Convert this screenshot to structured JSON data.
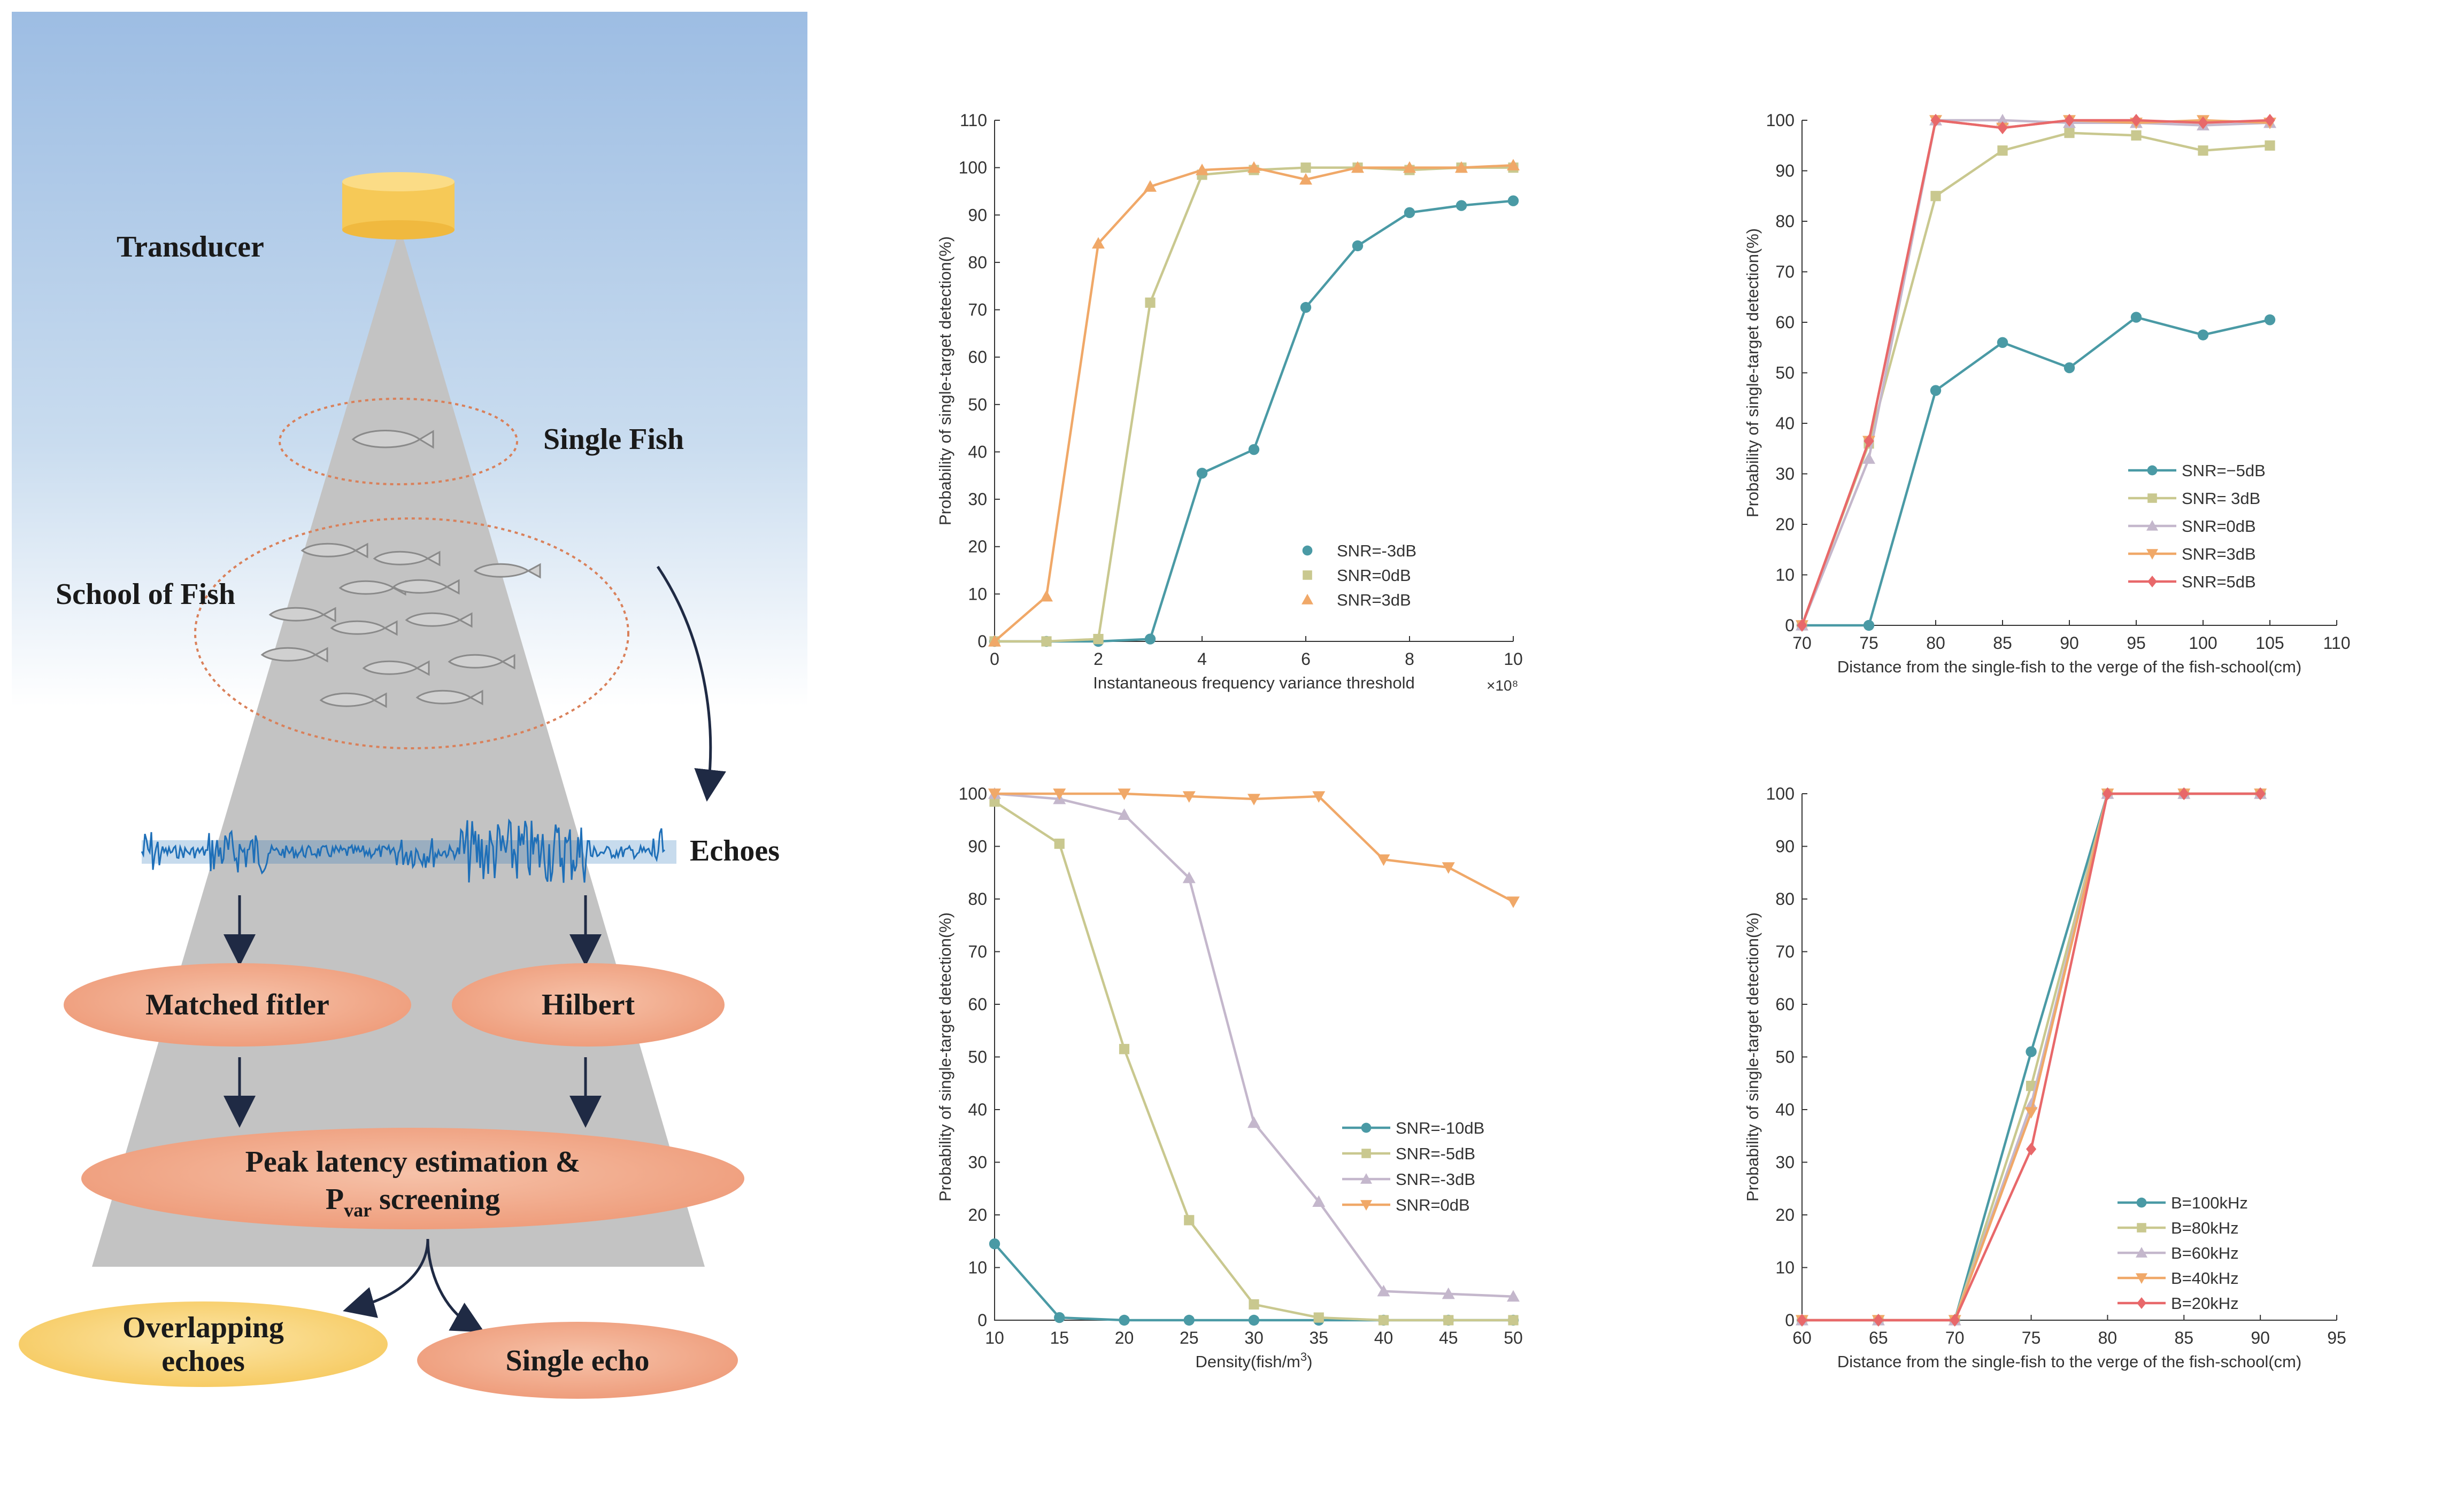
{
  "diagram": {
    "transducer": "Transducer",
    "single_fish": "Single Fish",
    "school_of_fish": "School of Fish",
    "echoes": "Echoes",
    "matched_filter": "Matched fitler",
    "hilbert": "Hilbert",
    "peak_line1": "Peak latency estimation &",
    "peak_line2_p": "P",
    "peak_line2_sub": "var",
    "peak_line2_rest": " screening",
    "overlapping_line1": "Overlapping",
    "overlapping_line2": "echoes",
    "single_echo": "Single echo",
    "colors": {
      "sky_top": "#9dbde3",
      "cone": "#c3c3c3",
      "transducer": "#f7c95a",
      "process": "#f2a788",
      "overlap": "#f9d37a",
      "echo_wave": "#1e6fb8"
    }
  },
  "chart_data": [
    {
      "type": "line",
      "ylabel": "Probability of single-target detection(%)",
      "xlabel": "Instantaneous frequency variance threshold",
      "x_multiplier": "×10⁸",
      "xlim": [
        0,
        10
      ],
      "ylim": [
        0,
        110
      ],
      "xticks": [
        0,
        2,
        4,
        6,
        8,
        10
      ],
      "yticks": [
        0,
        10,
        20,
        30,
        40,
        50,
        60,
        70,
        80,
        90,
        100,
        110
      ],
      "legend_position": "bottom-right",
      "series": [
        {
          "name": "SNR=-3dB",
          "color": "#4a9aa5",
          "marker": "circle",
          "x": [
            0,
            1,
            2,
            3,
            4,
            5,
            6,
            7,
            8,
            9,
            10
          ],
          "y": [
            0,
            0,
            0,
            0.5,
            35.5,
            40.5,
            70.5,
            83.5,
            90.5,
            92,
            93
          ]
        },
        {
          "name": "SNR=0dB",
          "color": "#c9c88f",
          "marker": "square",
          "x": [
            0,
            1,
            2,
            3,
            4,
            5,
            6,
            7,
            8,
            9,
            10
          ],
          "y": [
            0,
            0,
            0.5,
            71.5,
            98.5,
            99.5,
            100,
            100,
            99.5,
            100,
            100
          ]
        },
        {
          "name": "SNR=3dB",
          "color": "#f0a868",
          "marker": "triangle",
          "x": [
            0,
            1,
            2,
            3,
            4,
            5,
            6,
            7,
            8,
            9,
            10
          ],
          "y": [
            0,
            9.5,
            84,
            96,
            99.5,
            100,
            97.5,
            100,
            100,
            100,
            100.5
          ]
        }
      ]
    },
    {
      "type": "line",
      "ylabel": "Probability of single-target detection(%)",
      "xlabel": "Distance from the single-fish to the verge of the fish-school(cm)",
      "xlim": [
        70,
        110
      ],
      "ylim": [
        0,
        100
      ],
      "xticks": [
        70,
        75,
        80,
        85,
        90,
        95,
        100,
        105,
        110
      ],
      "yticks": [
        0,
        10,
        20,
        30,
        40,
        50,
        60,
        70,
        80,
        90,
        100
      ],
      "legend_position": "center-right",
      "series": [
        {
          "name": "SNR=−5dB",
          "color": "#4a9aa5",
          "marker": "circle",
          "x": [
            70,
            75,
            80,
            85,
            90,
            95,
            100,
            105
          ],
          "y": [
            0,
            0,
            46.5,
            56,
            51,
            61,
            57.5,
            60.5
          ]
        },
        {
          "name": "SNR=  3dB",
          "color": "#c9c88f",
          "marker": "square",
          "x": [
            70,
            75,
            80,
            85,
            90,
            95,
            100,
            105
          ],
          "y": [
            0,
            36,
            85,
            94,
            97.5,
            97,
            94,
            95
          ]
        },
        {
          "name": "SNR=0dB",
          "color": "#c4b7cc",
          "marker": "triangle",
          "x": [
            70,
            75,
            80,
            85,
            90,
            95,
            100,
            105
          ],
          "y": [
            0,
            33,
            100,
            100,
            99.5,
            99.5,
            99,
            99.5
          ]
        },
        {
          "name": "SNR=3dB",
          "color": "#f0a868",
          "marker": "triangle-down",
          "x": [
            70,
            75,
            80,
            85,
            90,
            95,
            100,
            105
          ],
          "y": [
            0,
            36.5,
            100,
            98.5,
            100,
            99.5,
            100,
            99.5
          ]
        },
        {
          "name": "SNR=5dB",
          "color": "#e8686a",
          "marker": "diamond",
          "x": [
            70,
            75,
            80,
            85,
            90,
            95,
            100,
            105
          ],
          "y": [
            0,
            36.5,
            100,
            98.5,
            100,
            100,
            99.5,
            100
          ]
        }
      ]
    },
    {
      "type": "line",
      "ylabel": "Probability of single-target detection(%)",
      "xlabel": "Density(fish/m",
      "xlabel_sup": "3",
      "xlabel_end": ")",
      "xlim": [
        10,
        50
      ],
      "ylim": [
        0,
        100
      ],
      "xticks": [
        10,
        15,
        20,
        25,
        30,
        35,
        40,
        45,
        50
      ],
      "yticks": [
        0,
        10,
        20,
        30,
        40,
        50,
        60,
        70,
        80,
        90,
        100
      ],
      "legend_position": "center-right",
      "series": [
        {
          "name": "SNR=-10dB",
          "color": "#4a9aa5",
          "marker": "circle",
          "x": [
            10,
            15,
            20,
            25,
            30,
            35,
            40,
            45,
            50
          ],
          "y": [
            14.5,
            0.5,
            0,
            0,
            0,
            0,
            0,
            0,
            0
          ]
        },
        {
          "name": "SNR=-5dB",
          "color": "#c9c88f",
          "marker": "square",
          "x": [
            10,
            15,
            20,
            25,
            30,
            35,
            40,
            45,
            50
          ],
          "y": [
            98.5,
            90.5,
            51.5,
            19,
            3,
            0.5,
            0,
            0,
            0
          ]
        },
        {
          "name": "SNR=-3dB",
          "color": "#c4b7cc",
          "marker": "triangle",
          "x": [
            10,
            15,
            20,
            25,
            30,
            35,
            40,
            45,
            50
          ],
          "y": [
            100,
            99,
            96,
            84,
            37.5,
            22.5,
            5.5,
            5,
            4.5
          ]
        },
        {
          "name": "SNR=0dB",
          "color": "#f0a868",
          "marker": "triangle-down",
          "x": [
            10,
            15,
            20,
            25,
            30,
            35,
            40,
            45,
            50
          ],
          "y": [
            100,
            100,
            100,
            99.5,
            99,
            99.5,
            87.5,
            86,
            79.5
          ]
        }
      ]
    },
    {
      "type": "line",
      "ylabel": "Probability of single-target detection(%)",
      "xlabel": "Distance from the single-fish to the verge of the fish-school(cm)",
      "xlim": [
        60,
        95
      ],
      "ylim": [
        0,
        100
      ],
      "xticks": [
        60,
        65,
        70,
        75,
        80,
        85,
        90,
        95
      ],
      "yticks": [
        0,
        10,
        20,
        30,
        40,
        50,
        60,
        70,
        80,
        90,
        100
      ],
      "legend_position": "bottom-right",
      "series": [
        {
          "name": "B=100kHz",
          "color": "#4a9aa5",
          "marker": "circle",
          "x": [
            60,
            65,
            70,
            75,
            80,
            85,
            90
          ],
          "y": [
            0,
            0,
            0,
            51,
            100,
            100,
            100
          ]
        },
        {
          "name": "B=80kHz",
          "color": "#c9c88f",
          "marker": "square",
          "x": [
            60,
            65,
            70,
            75,
            80,
            85,
            90
          ],
          "y": [
            0,
            0,
            0,
            44.5,
            100,
            100,
            100
          ]
        },
        {
          "name": "B=60kHz",
          "color": "#c4b7cc",
          "marker": "triangle",
          "x": [
            60,
            65,
            70,
            75,
            80,
            85,
            90
          ],
          "y": [
            0,
            0,
            0,
            41,
            100,
            100,
            100
          ]
        },
        {
          "name": "B=40kHz",
          "color": "#f0a868",
          "marker": "triangle-down",
          "x": [
            60,
            65,
            70,
            75,
            80,
            85,
            90
          ],
          "y": [
            0,
            0,
            0,
            39.5,
            100,
            100,
            100
          ]
        },
        {
          "name": "B=20kHz",
          "color": "#e8686a",
          "marker": "diamond",
          "x": [
            60,
            65,
            70,
            75,
            80,
            85,
            90
          ],
          "y": [
            0,
            0,
            0,
            32.5,
            100,
            100,
            100
          ]
        }
      ]
    }
  ]
}
